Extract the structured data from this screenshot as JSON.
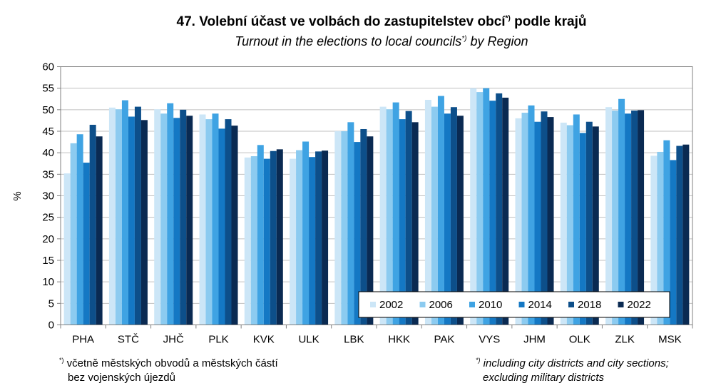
{
  "header": {
    "title_cz": "47. Volební účast ve volbách do zastupitelstev obcí",
    "title_cz_after": " podle krajů",
    "title_en": "Turnout in the elections to local councils",
    "title_en_after": " by Region",
    "footnote_mark": "*)"
  },
  "footnotes": {
    "cz_line1": "včetně městských obvodů a městských částí",
    "cz_line2": "bez vojenských újezdů",
    "en_line1": "including city districts and city sections;",
    "en_line2": "excluding military districts"
  },
  "chart_data": {
    "type": "bar",
    "ylabel": "%",
    "xlabel": "",
    "ylim": [
      0,
      60
    ],
    "yticks": [
      0,
      5,
      10,
      15,
      20,
      25,
      30,
      35,
      40,
      45,
      50,
      55,
      60
    ],
    "grid": true,
    "legend_position": "bottom-right",
    "categories": [
      "PHA",
      "STČ",
      "JHČ",
      "PLK",
      "KVK",
      "ULK",
      "LBK",
      "HKK",
      "PAK",
      "VYS",
      "JHM",
      "OLK",
      "ZLK",
      "MSK"
    ],
    "series": [
      {
        "name": "2002",
        "color": "#cce6f7",
        "values": [
          35.2,
          50.5,
          50.1,
          48.9,
          38.9,
          38.6,
          45.0,
          50.7,
          52.3,
          55.0,
          48.0,
          47.0,
          50.6,
          39.3
        ]
      },
      {
        "name": "2006",
        "color": "#8ccbf0",
        "values": [
          42.2,
          50.1,
          49.1,
          47.8,
          39.2,
          40.6,
          45.0,
          50.1,
          50.7,
          54.1,
          49.3,
          46.4,
          49.8,
          40.2
        ]
      },
      {
        "name": "2010",
        "color": "#3fa3e3",
        "values": [
          44.3,
          52.2,
          51.5,
          49.1,
          41.8,
          42.6,
          47.1,
          51.7,
          53.2,
          55.0,
          51.0,
          48.9,
          52.5,
          42.9
        ]
      },
      {
        "name": "2014",
        "color": "#1478c4",
        "values": [
          37.7,
          48.4,
          48.1,
          45.6,
          38.6,
          39.0,
          42.5,
          47.8,
          49.1,
          52.1,
          47.2,
          44.6,
          49.1,
          38.3
        ]
      },
      {
        "name": "2018",
        "color": "#0d4f8a",
        "values": [
          46.5,
          50.7,
          50.0,
          47.8,
          40.4,
          40.3,
          45.5,
          49.7,
          50.6,
          53.8,
          49.6,
          47.2,
          49.8,
          41.6
        ]
      },
      {
        "name": "2022",
        "color": "#0a2a52",
        "values": [
          43.8,
          47.6,
          48.6,
          46.3,
          40.8,
          40.5,
          43.8,
          47.1,
          48.6,
          52.8,
          48.3,
          46.1,
          49.9,
          41.9
        ]
      }
    ]
  }
}
